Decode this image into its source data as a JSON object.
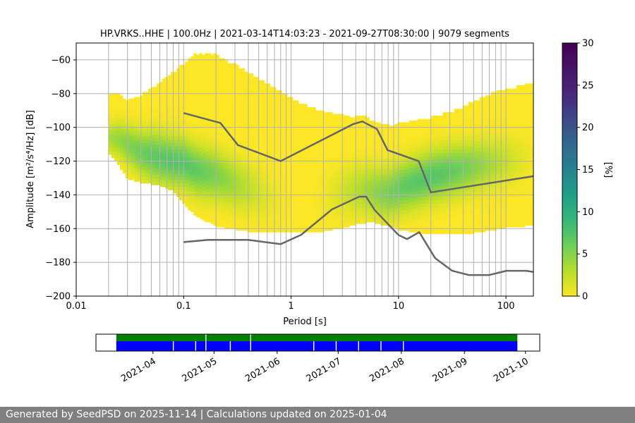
{
  "chart_data": [
    {
      "type": "heatmap",
      "title": "HP.VRKS..HHE | 100.0Hz | 2021-03-14T14:03:23 - 2021-09-27T08:30:00 | 9079 segments",
      "xlabel": "Period [s]",
      "ylabel": "Amplitude [m²/s⁴/Hz] [dB]",
      "xscale": "log",
      "xlim": [
        0.01,
        180
      ],
      "ylim": [
        -200,
        -50
      ],
      "xticks": [
        0.01,
        0.1,
        1,
        10,
        100
      ],
      "xtick_labels": [
        "0.01",
        "0.1",
        "1",
        "10",
        "100"
      ],
      "yticks": [
        -200,
        -180,
        -160,
        -140,
        -120,
        -100,
        -80,
        -60
      ],
      "ytick_labels": [
        "−200",
        "−180",
        "−160",
        "−140",
        "−120",
        "−100",
        "−80",
        "−60"
      ],
      "grid": true,
      "colorbar": {
        "label": "[%]",
        "range": [
          0,
          30
        ],
        "ticks": [
          "0",
          "5",
          "10",
          "15",
          "20",
          "25",
          "30"
        ],
        "colormap": "viridis_r"
      },
      "psd_envelope": {
        "period": [
          0.02,
          0.025,
          0.03,
          0.04,
          0.06,
          0.08,
          0.1,
          0.13,
          0.2,
          0.3,
          0.5,
          0.8,
          1.2,
          2,
          3,
          4,
          5,
          6,
          8,
          10,
          15,
          20,
          30,
          50,
          80,
          100,
          150,
          180
        ],
        "upper_db": [
          -80,
          -82,
          -85,
          -82,
          -75,
          -68,
          -63,
          -57,
          -58,
          -64,
          -72,
          -80,
          -86,
          -92,
          -94,
          -94,
          -95,
          -97,
          -99,
          -99,
          -97,
          -95,
          -92,
          -86,
          -80,
          -78,
          -76,
          -75
        ],
        "lower_db": [
          -115,
          -122,
          -130,
          -132,
          -134,
          -137,
          -145,
          -152,
          -158,
          -160,
          -162,
          -162,
          -162,
          -161,
          -159,
          -157,
          -156,
          -156,
          -158,
          -160,
          -162,
          -163,
          -163,
          -162,
          -160,
          -159,
          -158,
          -158
        ],
        "mode_db": [
          -106,
          -107,
          -110,
          -115,
          -118,
          -120,
          -121,
          -125,
          -128,
          -133,
          -138,
          -143,
          -145,
          -142,
          -138,
          -137,
          -137,
          -138,
          -139,
          -136,
          -132,
          -129,
          -126,
          -123,
          -121,
          -120,
          -119,
          -118
        ]
      },
      "nhnm": {
        "period": [
          0.1,
          0.22,
          0.32,
          0.8,
          3.8,
          4.6,
          6.3,
          7.9,
          15.4,
          20,
          354.8
        ],
        "db": [
          -91.5,
          -97.4,
          -110.5,
          -120,
          -98,
          -96.5,
          -101,
          -113.5,
          -120,
          -138.5,
          -126
        ]
      },
      "nlnm": {
        "period": [
          0.1,
          0.17,
          0.4,
          0.8,
          1.24,
          2.4,
          4.3,
          5,
          6,
          10,
          12,
          15.6,
          21.9,
          31.6,
          45,
          70,
          101,
          154,
          180
        ],
        "db": [
          -168,
          -166.7,
          -166.7,
          -169.2,
          -163.7,
          -148.6,
          -141.1,
          -141.1,
          -149,
          -163.8,
          -166.2,
          -162.1,
          -177.5,
          -185,
          -187.5,
          -187.5,
          -185,
          -185,
          -185.7
        ]
      }
    },
    {
      "type": "timeline",
      "range": [
        "2021-03-14",
        "2021-09-27"
      ],
      "xtick_labels": [
        "2021-04",
        "2021-05",
        "2021-06",
        "2021-07",
        "2021-08",
        "2021-09",
        "2021-10"
      ],
      "xtick_dates": [
        "2021-04-01",
        "2021-05-01",
        "2021-06-01",
        "2021-07-01",
        "2021-08-01",
        "2021-09-01",
        "2021-10-01"
      ],
      "axis_range": [
        "2021-03-04",
        "2021-10-08"
      ],
      "colors": {
        "coverage": "#008000",
        "psd": "#0000ff",
        "gap": "#ffffff"
      },
      "coverage_gaps": [
        "2021-04-27",
        "2021-05-19"
      ],
      "psd_gaps": [
        "2021-04-11",
        "2021-04-22",
        "2021-04-27",
        "2021-05-09",
        "2021-05-19",
        "2021-06-19",
        "2021-06-30",
        "2021-07-11",
        "2021-07-22",
        "2021-08-02"
      ]
    }
  ],
  "footer": {
    "text": "Generated by SeedPSD on 2025-11-14 | Calculations updated on 2025-01-04"
  }
}
